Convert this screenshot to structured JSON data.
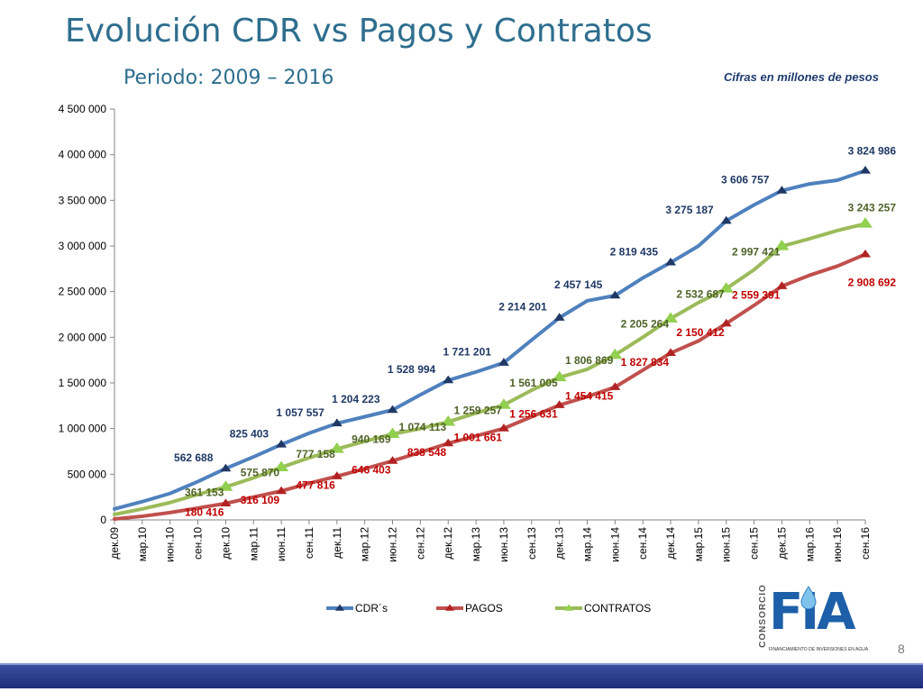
{
  "slide": {
    "title": "Evolución CDR vs Pagos y Contratos",
    "subtitle": "Periodo: 2009 – 2016",
    "note": "Cifras en millones de pesos",
    "page_number": "8"
  },
  "logo": {
    "brand": "FIA",
    "vertical_text": "CONSORCIO",
    "tagline": "FINANCIAMIENTO DE INVERSIONES EN AGUA"
  },
  "chart_data": {
    "type": "line",
    "title": "",
    "xlabel": "",
    "ylabel": "",
    "ylim": [
      0,
      4500000
    ],
    "yticks": [
      0,
      500000,
      1000000,
      1500000,
      2000000,
      2500000,
      3000000,
      3500000,
      4000000,
      4500000
    ],
    "ytick_labels": [
      "0",
      "500 000",
      "1 000 000",
      "1 500 000",
      "2 000 000",
      "2 500 000",
      "3 000 000",
      "3 500 000",
      "4 000 000",
      "4 500 000"
    ],
    "x_labels": [
      "дек.09",
      "мар.10",
      "июн.10",
      "сен.10",
      "дек.10",
      "мар.11",
      "июн.11",
      "сен.11",
      "дек.11",
      "мар.12",
      "июн.12",
      "сен.12",
      "дек.12",
      "мар.13",
      "июн.13",
      "сен.13",
      "дек.13",
      "мар.14",
      "июн.14",
      "сен.14",
      "дек.14",
      "мар.15",
      "июн.15",
      "сен.15",
      "дек.15",
      "мар.16",
      "июн.16",
      "сен.16"
    ],
    "legend": {
      "position": "bottom",
      "entries": [
        "CDR´s",
        "PAGOS",
        "CONTRATOS"
      ]
    },
    "series": [
      {
        "name": "CDR´s",
        "color": "#4f81bd",
        "marker_color": "#1f3864",
        "label_color": "#1f3864",
        "values": [
          120000,
          200000,
          290000,
          420000,
          562688,
          690000,
          825403,
          950000,
          1057557,
          1130000,
          1204223,
          1370000,
          1528994,
          1620000,
          1721201,
          1970000,
          2214201,
          2400000,
          2457145,
          2650000,
          2819435,
          3000000,
          3275187,
          3450000,
          3606757,
          3680000,
          3720000,
          3824986
        ],
        "labeled_points": [
          {
            "index": 4,
            "value": 562688,
            "label": "562 688"
          },
          {
            "index": 6,
            "value": 825403,
            "label": "825 403"
          },
          {
            "index": 8,
            "value": 1057557,
            "label": "1 057 557"
          },
          {
            "index": 10,
            "value": 1204223,
            "label": "1 204 223"
          },
          {
            "index": 12,
            "value": 1528994,
            "label": "1 528 994"
          },
          {
            "index": 14,
            "value": 1721201,
            "label": "1 721 201"
          },
          {
            "index": 16,
            "value": 2214201,
            "label": "2 214 201"
          },
          {
            "index": 18,
            "value": 2457145,
            "label": "2 457 145"
          },
          {
            "index": 20,
            "value": 2819435,
            "label": "2 819 435"
          },
          {
            "index": 22,
            "value": 3275187,
            "label": "3 275 187"
          },
          {
            "index": 24,
            "value": 3606757,
            "label": "3 606 757"
          },
          {
            "index": 27,
            "value": 3824986,
            "label": "3 824 986"
          }
        ]
      },
      {
        "name": "PAGOS",
        "color": "#c0504d",
        "marker_color": "#b22222",
        "label_color": "#c00000",
        "values": [
          10000,
          40000,
          80000,
          130000,
          180416,
          250000,
          316109,
          400000,
          477816,
          560000,
          646403,
          740000,
          838548,
          920000,
          1001661,
          1130000,
          1256631,
          1350000,
          1454415,
          1640000,
          1827834,
          1960000,
          2150412,
          2350000,
          2559391,
          2680000,
          2780000,
          2908692
        ],
        "labeled_points": [
          {
            "index": 4,
            "value": 180416,
            "label": "180 416"
          },
          {
            "index": 6,
            "value": 316109,
            "label": "316 109"
          },
          {
            "index": 8,
            "value": 477816,
            "label": "477 816"
          },
          {
            "index": 10,
            "value": 646403,
            "label": "646 403"
          },
          {
            "index": 12,
            "value": 838548,
            "label": "838 548"
          },
          {
            "index": 14,
            "value": 1001661,
            "label": "1 001 661"
          },
          {
            "index": 16,
            "value": 1256631,
            "label": "1 256 631"
          },
          {
            "index": 18,
            "value": 1454415,
            "label": "1 454 415"
          },
          {
            "index": 20,
            "value": 1827834,
            "label": "1 827 834"
          },
          {
            "index": 22,
            "value": 2150412,
            "label": "2 150 412"
          },
          {
            "index": 24,
            "value": 2559391,
            "label": "2 559 391"
          },
          {
            "index": 27,
            "value": 2908692,
            "label": "2 908 692"
          }
        ]
      },
      {
        "name": "CONTRATOS",
        "color": "#9bbb59",
        "marker_color": "#92d050",
        "label_color": "#4f6228",
        "values": [
          60000,
          120000,
          190000,
          280000,
          361153,
          460000,
          575870,
          680000,
          777158,
          860000,
          940169,
          1000000,
          1074113,
          1170000,
          1259257,
          1420000,
          1561005,
          1650000,
          1806869,
          2000000,
          2205264,
          2380000,
          2532687,
          2740000,
          2997421,
          3080000,
          3170000,
          3243257
        ],
        "labeled_points": [
          {
            "index": 4,
            "value": 361153,
            "label": "361 153"
          },
          {
            "index": 6,
            "value": 575870,
            "label": "575 870"
          },
          {
            "index": 8,
            "value": 777158,
            "label": "777 158"
          },
          {
            "index": 10,
            "value": 940169,
            "label": "940 169"
          },
          {
            "index": 12,
            "value": 1074113,
            "label": "1 074 113"
          },
          {
            "index": 14,
            "value": 1259257,
            "label": "1 259 257"
          },
          {
            "index": 16,
            "value": 1561005,
            "label": "1 561 005"
          },
          {
            "index": 18,
            "value": 1806869,
            "label": "1 806 869"
          },
          {
            "index": 20,
            "value": 2205264,
            "label": "2 205 264"
          },
          {
            "index": 22,
            "value": 2532687,
            "label": "2 532 687"
          },
          {
            "index": 24,
            "value": 2997421,
            "label": "2 997 421"
          },
          {
            "index": 27,
            "value": 3243257,
            "label": "3 243 257"
          }
        ]
      }
    ]
  }
}
